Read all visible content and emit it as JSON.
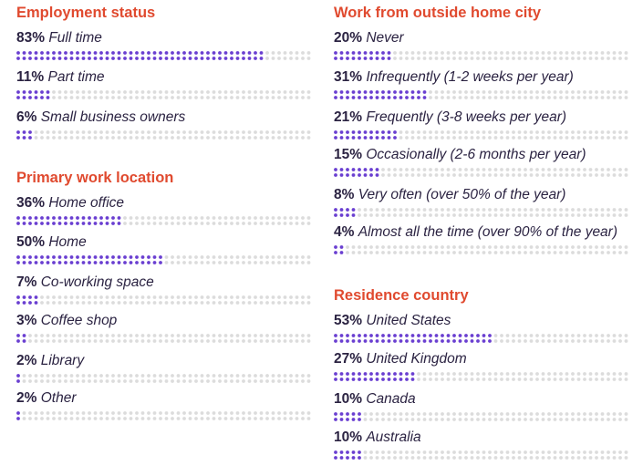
{
  "colors": {
    "title": "#e04a2f",
    "filled_dot": "#6a3fd1",
    "empty_dot": "#dcdcdc",
    "text": "#2b2342"
  },
  "chart_data": [
    {
      "type": "bar",
      "title": "Employment status",
      "unit": "%",
      "categories": [
        "Full time",
        "Part time",
        "Small business owners"
      ],
      "values": [
        83,
        11,
        6
      ],
      "ylim": [
        0,
        100
      ],
      "labels": [
        "83%",
        "11%",
        "6%"
      ]
    },
    {
      "type": "bar",
      "title": "Primary work location",
      "unit": "%",
      "categories": [
        "Home office",
        "Home",
        "Co-working space",
        "Coffee shop",
        "Library",
        "Other"
      ],
      "values": [
        36,
        50,
        7,
        3,
        2,
        2
      ],
      "ylim": [
        0,
        100
      ],
      "labels": [
        "36%",
        "50%",
        "7%",
        "3%",
        "2%",
        "2%"
      ]
    },
    {
      "type": "bar",
      "title": "Work from outside home city",
      "unit": "%",
      "categories": [
        "Never",
        "Infrequently (1-2 weeks per year)",
        "Frequently (3-8 weeks per year)",
        "Occasionally (2-6 months per year)",
        "Very often (over 50% of the year)",
        "Almost all the time (over 90% of the year)"
      ],
      "values": [
        20,
        31,
        21,
        15,
        8,
        4
      ],
      "ylim": [
        0,
        100
      ],
      "labels": [
        "20%",
        "31%",
        "21%",
        "15%",
        "8%",
        "4%"
      ]
    },
    {
      "type": "bar",
      "title": "Residence country",
      "unit": "%",
      "categories": [
        "United States",
        "United Kingdom",
        "Canada",
        "Australia"
      ],
      "values": [
        53,
        27,
        10,
        10
      ],
      "ylim": [
        0,
        100
      ],
      "labels": [
        "53%",
        "27%",
        "10%",
        "10%"
      ]
    }
  ]
}
